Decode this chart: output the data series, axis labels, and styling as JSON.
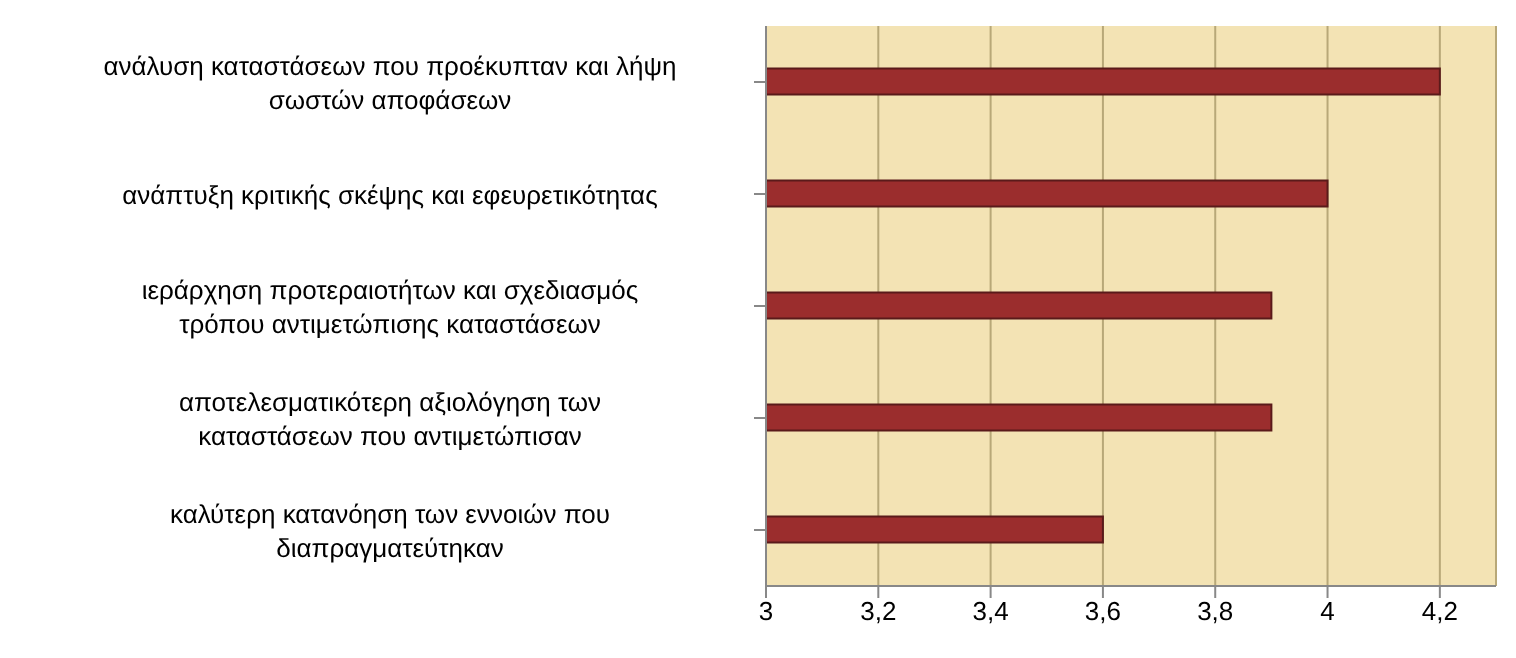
{
  "chart_data": {
    "type": "bar",
    "orientation": "horizontal",
    "categories": [
      "ανάλυση καταστάσεων που προέκυπταν και λήψη σωστών αποφάσεων",
      "ανάπτυξη κριτικής σκέψης και εφευρετικότητας",
      "ιεράρχηση προτεραιοτήτων και σχεδιασμός τρόπου αντιμετώπισης καταστάσεων",
      "αποτελεσματικότερη αξιολόγηση των καταστάσεων που αντιμετώπισαν",
      "καλύτερη κατανόηση των εννοιών που διαπραγματεύτηκαν"
    ],
    "values": [
      4.2,
      4.0,
      3.9,
      3.9,
      3.6
    ],
    "color": "#9b2d2d",
    "xlim": [
      3,
      4.3
    ],
    "xticks": [
      3,
      {
        "value": 3.2,
        "label": "3,2"
      },
      {
        "value": 3.4,
        "label": "3,4"
      },
      {
        "value": 3.6,
        "label": "3,6"
      },
      {
        "value": 3.8,
        "label": "3,8"
      },
      4,
      {
        "value": 4.2,
        "label": "4,2"
      }
    ],
    "grid": "x"
  }
}
